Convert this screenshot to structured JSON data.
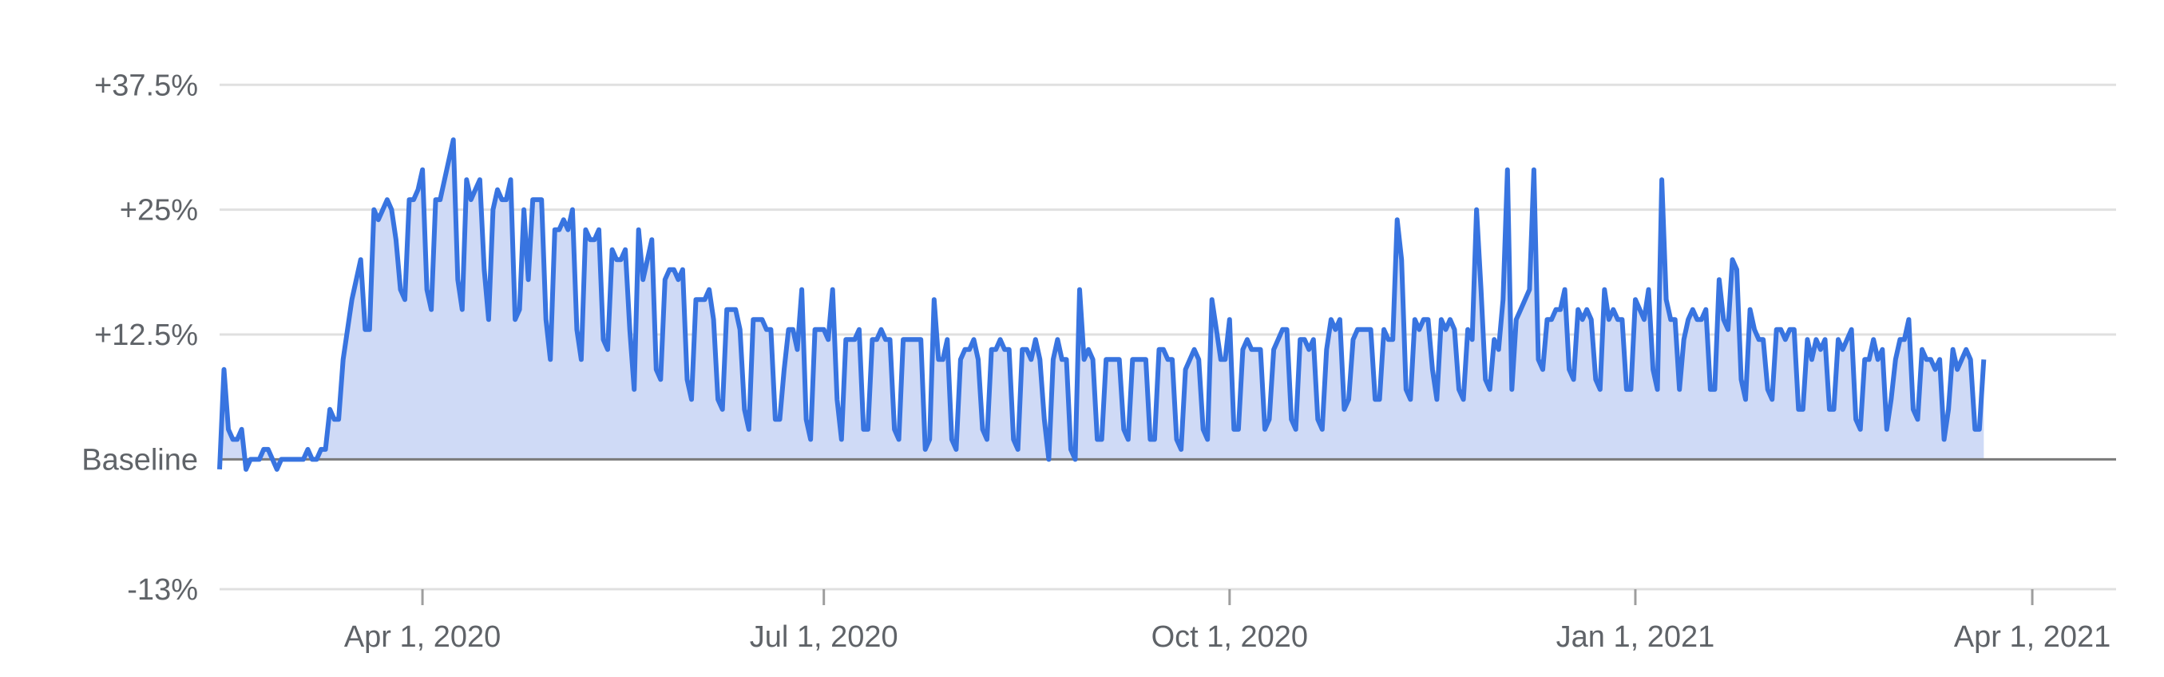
{
  "chart_data": {
    "type": "area",
    "title": "",
    "xlabel": "",
    "ylabel": "",
    "colors": {
      "line": "#3874e0",
      "fill": "#cfdaf6",
      "grid": "#e0e0e0",
      "baseline": "#7a7a7a",
      "text": "#5f6368"
    },
    "grid": true,
    "legend": "none",
    "ylim": [
      -13,
      40
    ],
    "y_ticks": [
      {
        "value": 37.5,
        "label": "+37.5%"
      },
      {
        "value": 25,
        "label": "+25%"
      },
      {
        "value": 12.5,
        "label": "+12.5%"
      },
      {
        "value": 0,
        "label": "Baseline"
      },
      {
        "value": -13,
        "label": "-13%"
      }
    ],
    "xlim": [
      "2020-02-15",
      "2021-04-20"
    ],
    "x_ticks": [
      {
        "value": "2020-04-01",
        "label": "Apr 1, 2020"
      },
      {
        "value": "2020-07-01",
        "label": "Jul 1, 2020"
      },
      {
        "value": "2020-10-01",
        "label": "Oct 1, 2020"
      },
      {
        "value": "2021-01-01",
        "label": "Jan 1, 2021"
      },
      {
        "value": "2021-04-01",
        "label": "Apr 1, 2021"
      }
    ],
    "series": [
      {
        "x_start": "2020-02-15",
        "step": "1 day",
        "values": [
          -1,
          9,
          3,
          2,
          2,
          3,
          -1,
          0,
          0,
          0,
          1,
          1,
          0,
          -1,
          0,
          0,
          0,
          0,
          0,
          0,
          1,
          0,
          0,
          1,
          1,
          5,
          4,
          4,
          10,
          13,
          16,
          18,
          20,
          13,
          13,
          25,
          24,
          25,
          26,
          25,
          22,
          17,
          16,
          26,
          26,
          27,
          29,
          17,
          15,
          26,
          26,
          28,
          30,
          32,
          18,
          15,
          28,
          26,
          27,
          28,
          19,
          14,
          25,
          27,
          26,
          26,
          28,
          14,
          15,
          25,
          18,
          26,
          26,
          26,
          14,
          10,
          23,
          23,
          24,
          23,
          25,
          13,
          10,
          23,
          22,
          22,
          23,
          12,
          11,
          21,
          20,
          20,
          21,
          13,
          7,
          23,
          18,
          20,
          22,
          9,
          8,
          18,
          19,
          19,
          18,
          19,
          8,
          6,
          16,
          16,
          16,
          17,
          14,
          6,
          5,
          15,
          15,
          15,
          13,
          5,
          3,
          14,
          14,
          14,
          13,
          13,
          4,
          4,
          9,
          13,
          13,
          11,
          17,
          4,
          2,
          13,
          13,
          13,
          12,
          17,
          6,
          2,
          12,
          12,
          12,
          13,
          3,
          3,
          12,
          12,
          13,
          12,
          12,
          3,
          2,
          12,
          12,
          12,
          12,
          12,
          1,
          2,
          16,
          10,
          10,
          12,
          2,
          1,
          10,
          11,
          11,
          12,
          10,
          3,
          2,
          11,
          11,
          12,
          11,
          11,
          2,
          1,
          11,
          11,
          10,
          12,
          10,
          4,
          0,
          10,
          12,
          10,
          10,
          1,
          0,
          17,
          10,
          11,
          10,
          2,
          2,
          10,
          10,
          10,
          10,
          3,
          2,
          10,
          10,
          10,
          10,
          2,
          2,
          11,
          11,
          10,
          10,
          2,
          1,
          9,
          10,
          11,
          10,
          3,
          2,
          16,
          13,
          10,
          10,
          14,
          3,
          3,
          11,
          12,
          11,
          11,
          11,
          3,
          4,
          11,
          12,
          13,
          13,
          4,
          3,
          12,
          12,
          11,
          12,
          4,
          3,
          11,
          14,
          13,
          14,
          5,
          6,
          12,
          13,
          13,
          13,
          13,
          6,
          6,
          13,
          12,
          12,
          24,
          20,
          7,
          6,
          14,
          13,
          14,
          14,
          9,
          6,
          14,
          13,
          14,
          13,
          7,
          6,
          13,
          12,
          25,
          17,
          8,
          7,
          12,
          11,
          16,
          29,
          7,
          14,
          15,
          16,
          17,
          29,
          10,
          9,
          14,
          14,
          15,
          15,
          17,
          9,
          8,
          15,
          14,
          15,
          14,
          8,
          7,
          17,
          14,
          15,
          14,
          14,
          7,
          7,
          16,
          15,
          14,
          17,
          9,
          7,
          28,
          16,
          14,
          14,
          7,
          12,
          14,
          15,
          14,
          14,
          15,
          7,
          7,
          18,
          14,
          13,
          20,
          19,
          8,
          6,
          15,
          13,
          12,
          12,
          7,
          6,
          13,
          13,
          12,
          13,
          13,
          5,
          5,
          12,
          10,
          12,
          11,
          12,
          5,
          5,
          12,
          11,
          12,
          13,
          4,
          3,
          10,
          10,
          12,
          10,
          11,
          3,
          6,
          10,
          12,
          12,
          14,
          5,
          4,
          11,
          10,
          10,
          9,
          10,
          2,
          5,
          11,
          9,
          10,
          11,
          10,
          3,
          3,
          10
        ]
      }
    ]
  }
}
